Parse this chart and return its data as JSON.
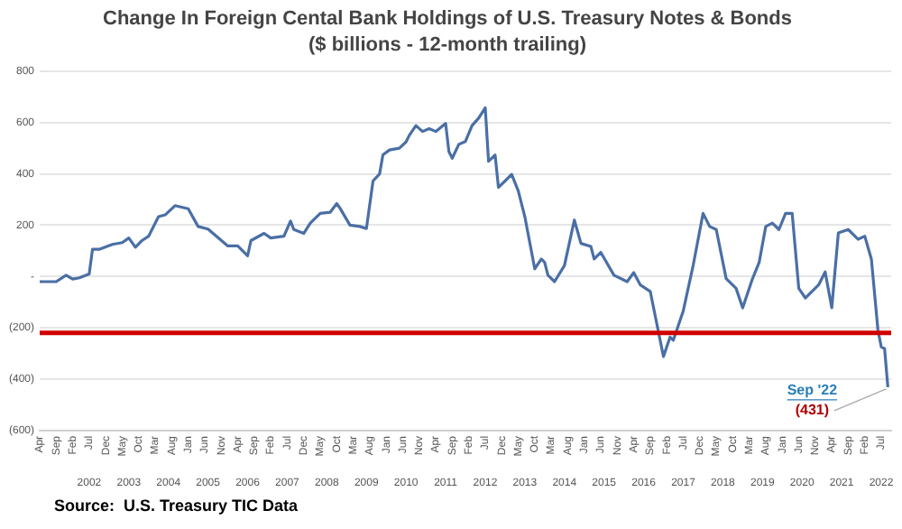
{
  "chart_data": {
    "type": "line",
    "title": "Change In Foreign Cental Bank Holdings of U.S. Treasury Notes & Bonds",
    "subtitle": "($ billions - 12-month trailing)",
    "x": [
      "2001-04",
      "2001-09",
      "2001-12",
      "2002-02",
      "2002-04",
      "2002-07",
      "2002-08",
      "2002-10",
      "2003-02",
      "2003-05",
      "2003-07",
      "2003-09",
      "2003-11",
      "2004-01",
      "2004-04",
      "2004-06",
      "2004-09",
      "2005-01",
      "2005-04",
      "2005-07",
      "2006-01",
      "2006-04",
      "2006-07",
      "2006-08",
      "2006-12",
      "2007-02",
      "2007-06",
      "2007-08",
      "2007-09",
      "2007-12",
      "2008-02",
      "2008-05",
      "2008-08",
      "2008-10",
      "2008-11",
      "2009-02",
      "2009-05",
      "2009-07",
      "2009-09",
      "2009-11",
      "2009-12",
      "2010-02",
      "2010-05",
      "2010-07",
      "2010-08",
      "2010-10",
      "2010-12",
      "2011-02",
      "2011-04",
      "2011-07",
      "2011-08",
      "2011-09",
      "2011-11",
      "2012-01",
      "2012-03",
      "2012-05",
      "2012-07",
      "2012-08",
      "2012-10",
      "2012-11",
      "2013-01",
      "2013-03",
      "2013-05",
      "2013-07",
      "2013-10",
      "2013-12",
      "2014-01",
      "2014-02",
      "2014-04",
      "2014-07",
      "2014-10",
      "2014-12",
      "2015-03",
      "2015-04",
      "2015-06",
      "2015-10",
      "2016-02",
      "2016-04",
      "2016-06",
      "2016-09",
      "2017-01",
      "2017-03",
      "2017-04",
      "2017-07",
      "2017-10",
      "2018-01",
      "2018-03",
      "2018-05",
      "2018-08",
      "2018-11",
      "2019-01",
      "2019-04",
      "2019-06",
      "2019-08",
      "2019-10",
      "2019-12",
      "2020-02",
      "2020-04",
      "2020-06",
      "2020-08",
      "2020-12",
      "2021-02",
      "2021-04",
      "2021-06",
      "2021-09",
      "2021-12",
      "2022-02",
      "2022-04",
      "2022-06",
      "2022-07",
      "2022-08",
      "2022-09"
    ],
    "series": [
      {
        "color": "#4a6fa5",
        "values": [
          -20,
          -20,
          5,
          -10,
          -5,
          10,
          106,
          106,
          125,
          132,
          150,
          114,
          140,
          157,
          233,
          240,
          276,
          264,
          195,
          185,
          119,
          119,
          81,
          140,
          168,
          150,
          157,
          216,
          183,
          168,
          208,
          246,
          250,
          284,
          266,
          200,
          195,
          187,
          372,
          400,
          474,
          493,
          500,
          524,
          550,
          588,
          565,
          576,
          565,
          596,
          486,
          461,
          515,
          526,
          588,
          617,
          657,
          449,
          473,
          347,
          372,
          398,
          334,
          233,
          30,
          68,
          55,
          5,
          -20,
          43,
          220,
          129,
          117,
          68,
          94,
          5,
          -20,
          15,
          -33,
          -58,
          -312,
          -236,
          -248,
          -134,
          43,
          246,
          195,
          183,
          -8,
          -46,
          -122,
          -8,
          55,
          195,
          208,
          183,
          246,
          246,
          -46,
          -84,
          -33,
          18,
          -122,
          170,
          183,
          145,
          157,
          68,
          -210,
          -274,
          -281,
          -431
        ]
      }
    ],
    "xlim": [
      "2001-04",
      "2022-10"
    ],
    "xticks": [
      {
        "value": "2001-04",
        "label": "Apr"
      },
      {
        "value": "2001-09",
        "label": "Sep"
      },
      {
        "value": "2002-02",
        "label": "Feb"
      },
      {
        "value": "2002-07",
        "label": "Jul"
      },
      {
        "value": "2002-12",
        "label": "Dec"
      },
      {
        "value": "2003-05",
        "label": "May"
      },
      {
        "value": "2003-10",
        "label": "Oct"
      },
      {
        "value": "2004-03",
        "label": "Mar"
      },
      {
        "value": "2004-08",
        "label": "Aug"
      },
      {
        "value": "2005-01",
        "label": "Jan"
      },
      {
        "value": "2005-06",
        "label": "Jun"
      },
      {
        "value": "2005-11",
        "label": "Nov"
      },
      {
        "value": "2006-04",
        "label": "Apr"
      },
      {
        "value": "2006-09",
        "label": "Sep"
      },
      {
        "value": "2007-02",
        "label": "Feb"
      },
      {
        "value": "2007-07",
        "label": "Jul"
      },
      {
        "value": "2007-12",
        "label": "Dec"
      },
      {
        "value": "2008-05",
        "label": "May"
      },
      {
        "value": "2008-10",
        "label": "Oct"
      },
      {
        "value": "2009-03",
        "label": "Mar"
      },
      {
        "value": "2009-08",
        "label": "Aug"
      },
      {
        "value": "2010-01",
        "label": "Jan"
      },
      {
        "value": "2010-06",
        "label": "Jun"
      },
      {
        "value": "2010-11",
        "label": "Nov"
      },
      {
        "value": "2011-04",
        "label": "Apr"
      },
      {
        "value": "2011-09",
        "label": "Sep"
      },
      {
        "value": "2012-02",
        "label": "Feb"
      },
      {
        "value": "2012-07",
        "label": "Jul"
      },
      {
        "value": "2012-12",
        "label": "Dec"
      },
      {
        "value": "2013-05",
        "label": "May"
      },
      {
        "value": "2013-10",
        "label": "Oct"
      },
      {
        "value": "2014-03",
        "label": "Mar"
      },
      {
        "value": "2014-08",
        "label": "Aug"
      },
      {
        "value": "2015-01",
        "label": "Jan"
      },
      {
        "value": "2015-06",
        "label": "Jun"
      },
      {
        "value": "2015-11",
        "label": "Nov"
      },
      {
        "value": "2016-04",
        "label": "Apr"
      },
      {
        "value": "2016-09",
        "label": "Sep"
      },
      {
        "value": "2017-02",
        "label": "Feb"
      },
      {
        "value": "2017-07",
        "label": "Jul"
      },
      {
        "value": "2017-12",
        "label": "Dec"
      },
      {
        "value": "2018-05",
        "label": "May"
      },
      {
        "value": "2018-10",
        "label": "Oct"
      },
      {
        "value": "2019-03",
        "label": "Mar"
      },
      {
        "value": "2019-08",
        "label": "Aug"
      },
      {
        "value": "2020-01",
        "label": "Jan"
      },
      {
        "value": "2020-06",
        "label": "Jun"
      },
      {
        "value": "2020-11",
        "label": "Nov"
      },
      {
        "value": "2021-04",
        "label": "Apr"
      },
      {
        "value": "2021-09",
        "label": "Sep"
      },
      {
        "value": "2022-02",
        "label": "Feb"
      },
      {
        "value": "2022-07",
        "label": "Jul"
      }
    ],
    "x2lim": [
      "2001-04",
      "2022-10"
    ],
    "x2ticks": [
      {
        "value": "2002-07",
        "label": "2002"
      },
      {
        "value": "2003-07",
        "label": "2003"
      },
      {
        "value": "2004-07",
        "label": "2004"
      },
      {
        "value": "2005-07",
        "label": "2005"
      },
      {
        "value": "2006-07",
        "label": "2006"
      },
      {
        "value": "2007-07",
        "label": "2007"
      },
      {
        "value": "2008-07",
        "label": "2008"
      },
      {
        "value": "2009-07",
        "label": "2009"
      },
      {
        "value": "2010-07",
        "label": "2010"
      },
      {
        "value": "2011-07",
        "label": "2011"
      },
      {
        "value": "2012-07",
        "label": "2012"
      },
      {
        "value": "2013-07",
        "label": "2013"
      },
      {
        "value": "2014-07",
        "label": "2014"
      },
      {
        "value": "2015-07",
        "label": "2015"
      },
      {
        "value": "2016-07",
        "label": "2016"
      },
      {
        "value": "2017-07",
        "label": "2017"
      },
      {
        "value": "2018-07",
        "label": "2018"
      },
      {
        "value": "2019-07",
        "label": "2019"
      },
      {
        "value": "2020-07",
        "label": "2020"
      },
      {
        "value": "2021-07",
        "label": "2021"
      },
      {
        "value": "2022-07",
        "label": "2022"
      }
    ],
    "ylim": [
      -600,
      800
    ],
    "yticks": [
      800,
      600,
      400,
      200,
      {
        "value": 0,
        "label": "-"
      },
      {
        "value": -200,
        "label": "(200)"
      },
      {
        "value": -400,
        "label": "(400)"
      },
      {
        "value": -600,
        "label": "(600)"
      }
    ],
    "ref_lines": [
      {
        "axis": "y",
        "value": -220,
        "color": "#d00000"
      }
    ],
    "annotations": [
      {
        "text": "Sep '22",
        "x": "2022-09",
        "y": -431
      },
      {
        "text": "(431)",
        "x": "2022-09",
        "y": -431
      },
      "Source:  U.S. Treasury TIC Data"
    ],
    "grid": "y",
    "legend": false,
    "marker": "none",
    "line_style": "solid"
  }
}
